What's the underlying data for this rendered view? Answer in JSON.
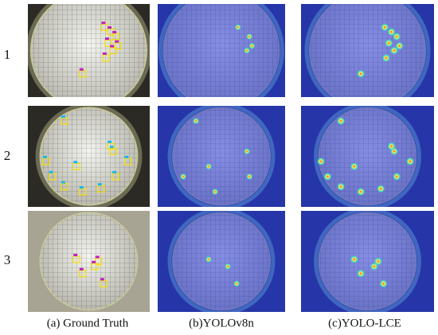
{
  "row_labels": [
    "1",
    "2",
    "3"
  ],
  "captions": [
    "(a) Ground Truth",
    "(b)YOLOv8n",
    "(c)YOLO-LCE"
  ]
}
